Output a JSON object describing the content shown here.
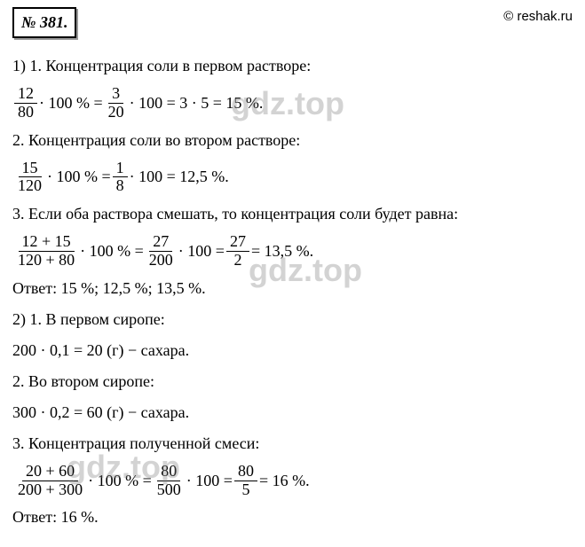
{
  "problem_number": "№ 381.",
  "copyright": "© reshak.ru",
  "watermark_text": "gdz.top",
  "sections": {
    "s1_title": "1) 1.  Концентрация соли в первом растворе:",
    "s1_frac1_num": "12",
    "s1_frac1_den": "80",
    "s1_mid1": " · 100 % = ",
    "s1_frac2_num": "3",
    "s1_frac2_den": "20",
    "s1_mid2": " · 100 = 3 · 5 = 15 %.",
    "s2_title": "2.  Концентрация соли во втором растворе:",
    "s2_frac1_num": "15",
    "s2_frac1_den": "120",
    "s2_mid1": " · 100 % = ",
    "s2_frac2_num": "1",
    "s2_frac2_den": "8",
    "s2_mid2": " · 100 = 12,5 %.",
    "s3_title": "3.  Если оба раствора смешать, то концентрация соли будет равна:",
    "s3_frac1_num": "12 + 15",
    "s3_frac1_den": "120 + 80",
    "s3_mid1": " · 100 % = ",
    "s3_frac2_num": "27",
    "s3_frac2_den": "200",
    "s3_mid2": " · 100 = ",
    "s3_frac3_num": "27",
    "s3_frac3_den": "2",
    "s3_mid3": " = 13,5 %.",
    "answer1": "Ответ: 15 %;   12,5 %;   13,5 %.",
    "s4_title": "2)  1.  В первом сиропе:",
    "s4_calc": "200 · 0,1 = 20 (г) − сахара.",
    "s5_title": "2.  Во втором сиропе:",
    "s5_calc": "300 · 0,2 = 60 (г) − сахара.",
    "s6_title": "3.  Концентрация полученной смеси:",
    "s6_frac1_num": "20 + 60",
    "s6_frac1_den": "200 + 300",
    "s6_mid1": " · 100 % = ",
    "s6_frac2_num": "80",
    "s6_frac2_den": "500",
    "s6_mid2": " · 100 = ",
    "s6_frac3_num": "80",
    "s6_frac3_den": "5",
    "s6_mid3": " = 16 %.",
    "answer2": "Ответ: 16 %."
  }
}
